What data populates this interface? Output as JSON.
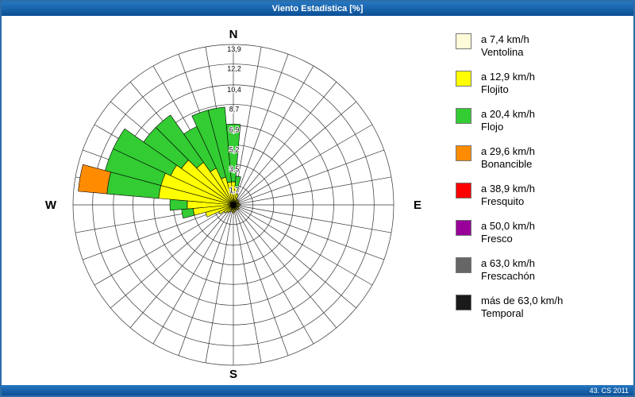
{
  "window": {
    "title": "Viento Estadística [%]",
    "footer": "43. CS 2011"
  },
  "colors": {
    "titlebar_blue": "#0B4F94",
    "border_blue": "#2E6DA8",
    "grid": "#333333"
  },
  "chart_data": {
    "type": "wind-rose",
    "title": "Viento Estadística [%]",
    "units": "%",
    "max": 13.9,
    "sector_width_deg": 10,
    "grid": "on",
    "legend_position": "right",
    "ring_values": [
      1.7,
      3.5,
      5.2,
      6.9,
      8.7,
      10.4,
      12.2,
      13.9
    ],
    "ring_labels": [
      "1,7",
      "3,5",
      "5,2",
      "6,9",
      "8,7",
      "10,4",
      "12,2",
      "13,9"
    ],
    "compass": {
      "north": "N",
      "east": "E",
      "south": "S",
      "west": "W"
    },
    "speed_classes": [
      {
        "label": "a 7,4 km/h",
        "name": "Ventolina",
        "color": "#FFFBD8"
      },
      {
        "label": "a 12,9 km/h",
        "name": "Flojito",
        "color": "#FFFF00"
      },
      {
        "label": "a 20,4 km/h",
        "name": "Flojo",
        "color": "#33CC33"
      },
      {
        "label": "a 29,6 km/h",
        "name": "Bonancible",
        "color": "#FF8C00"
      },
      {
        "label": "a 38,9 km/h",
        "name": "Fresquito",
        "color": "#FF0000"
      },
      {
        "label": "a 50,0 km/h",
        "name": "Fresco",
        "color": "#990099"
      },
      {
        "label": "a 63,0 km/h",
        "name": "Frescachón",
        "color": "#666666"
      },
      {
        "label": "más de 63,0 km/h",
        "name": "Temporal",
        "color": "#1A1A1A"
      }
    ],
    "sectors": [
      {
        "az": 0,
        "values": [
          0.2,
          1.8,
          5.0
        ]
      },
      {
        "az": 10,
        "values": [
          0.2,
          1.3,
          1.0
        ]
      },
      {
        "az": 20,
        "values": [
          0.2,
          0.8
        ]
      },
      {
        "az": 30,
        "values": [
          0.2,
          0.4
        ]
      },
      {
        "az": 40,
        "values": [
          0.1,
          0.3
        ]
      },
      {
        "az": 50,
        "values": [
          0.2,
          0.4
        ]
      },
      {
        "az": 60,
        "values": [
          0.1,
          0.2
        ]
      },
      {
        "az": 70,
        "values": [
          0.2,
          0.3
        ]
      },
      {
        "az": 80,
        "values": [
          0.1,
          0.3
        ]
      },
      {
        "az": 90,
        "values": [
          0.2,
          0.4
        ]
      },
      {
        "az": 100,
        "values": [
          0.1,
          0.2
        ]
      },
      {
        "az": 110,
        "values": [
          0.2,
          0.3
        ]
      },
      {
        "az": 120,
        "values": [
          0.1,
          0.2
        ]
      },
      {
        "az": 130,
        "values": [
          0.2,
          0.4
        ]
      },
      {
        "az": 140,
        "values": [
          0.1,
          0.2
        ]
      },
      {
        "az": 150,
        "values": [
          0.2,
          0.3
        ]
      },
      {
        "az": 160,
        "values": [
          0.1,
          0.3
        ]
      },
      {
        "az": 170,
        "values": [
          0.2,
          0.4
        ]
      },
      {
        "az": 180,
        "values": [
          0.2,
          0.5
        ]
      },
      {
        "az": 190,
        "values": [
          0.2,
          0.4
        ]
      },
      {
        "az": 200,
        "values": [
          0.1,
          0.3
        ]
      },
      {
        "az": 210,
        "values": [
          0.2,
          0.5
        ]
      },
      {
        "az": 220,
        "values": [
          0.2,
          0.6
        ]
      },
      {
        "az": 230,
        "values": [
          0.2,
          0.8
        ]
      },
      {
        "az": 240,
        "values": [
          0.2,
          1.2
        ]
      },
      {
        "az": 250,
        "values": [
          0.2,
          2.3
        ]
      },
      {
        "az": 260,
        "values": [
          0.2,
          3.3,
          1.0
        ]
      },
      {
        "az": 270,
        "values": [
          0.2,
          3.8,
          1.5
        ]
      },
      {
        "az": 280,
        "values": [
          0.2,
          6.3,
          4.5,
          2.5
        ]
      },
      {
        "az": 290,
        "values": [
          0.2,
          6.3,
          5.0
        ]
      },
      {
        "az": 300,
        "values": [
          0.2,
          5.8,
          5.5
        ]
      },
      {
        "az": 310,
        "values": [
          0.2,
          5.3,
          4.0
        ]
      },
      {
        "az": 320,
        "values": [
          0.2,
          4.3,
          5.0
        ]
      },
      {
        "az": 330,
        "values": [
          0.2,
          3.3,
          4.0
        ]
      },
      {
        "az": 340,
        "values": [
          0.2,
          2.3,
          6.0
        ]
      },
      {
        "az": 350,
        "values": [
          0.2,
          1.8,
          6.5
        ]
      }
    ]
  }
}
